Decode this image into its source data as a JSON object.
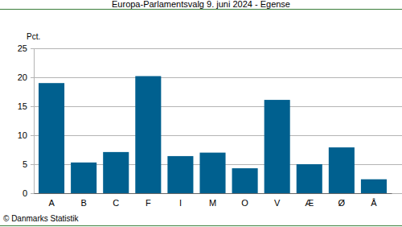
{
  "chart_data": {
    "type": "bar",
    "title": "Europa-Parlamentsvalg 9. juni 2024 - Egense",
    "y_label": "Pct.",
    "source": "© Danmarks Statistik",
    "categories": [
      "A",
      "B",
      "C",
      "F",
      "I",
      "M",
      "O",
      "V",
      "Æ",
      "Ø",
      "Å"
    ],
    "values": [
      19.0,
      5.3,
      7.1,
      20.2,
      6.4,
      7.0,
      4.3,
      16.1,
      5.0,
      7.9,
      2.4
    ],
    "color": "#00608f",
    "ylim": [
      0,
      25
    ],
    "yticks": [
      0,
      5,
      10,
      15,
      20,
      25
    ],
    "grid": true
  }
}
